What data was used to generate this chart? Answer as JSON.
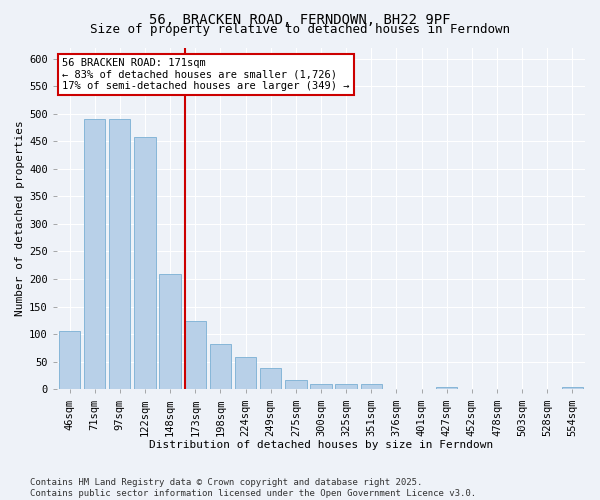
{
  "title": "56, BRACKEN ROAD, FERNDOWN, BH22 9PF",
  "subtitle": "Size of property relative to detached houses in Ferndown",
  "xlabel": "Distribution of detached houses by size in Ferndown",
  "ylabel": "Number of detached properties",
  "categories": [
    "46sqm",
    "71sqm",
    "97sqm",
    "122sqm",
    "148sqm",
    "173sqm",
    "198sqm",
    "224sqm",
    "249sqm",
    "275sqm",
    "300sqm",
    "325sqm",
    "351sqm",
    "376sqm",
    "401sqm",
    "427sqm",
    "452sqm",
    "478sqm",
    "503sqm",
    "528sqm",
    "554sqm"
  ],
  "values": [
    105,
    490,
    490,
    458,
    210,
    123,
    83,
    58,
    38,
    16,
    10,
    10,
    10,
    0,
    0,
    5,
    0,
    0,
    0,
    0,
    5
  ],
  "bar_color": "#b8d0e8",
  "bar_edgecolor": "#7aafd4",
  "vline_index": 5,
  "vline_color": "#cc0000",
  "annotation_text": "56 BRACKEN ROAD: 171sqm\n← 83% of detached houses are smaller (1,726)\n17% of semi-detached houses are larger (349) →",
  "annotation_box_facecolor": "#ffffff",
  "annotation_box_edgecolor": "#cc0000",
  "ylim": [
    0,
    620
  ],
  "yticks": [
    0,
    50,
    100,
    150,
    200,
    250,
    300,
    350,
    400,
    450,
    500,
    550,
    600
  ],
  "background_color": "#eef2f8",
  "grid_color": "#ffffff",
  "footer": "Contains HM Land Registry data © Crown copyright and database right 2025.\nContains public sector information licensed under the Open Government Licence v3.0.",
  "title_fontsize": 10,
  "subtitle_fontsize": 9,
  "axis_label_fontsize": 8,
  "tick_fontsize": 7.5,
  "footer_fontsize": 6.5,
  "annot_fontsize": 7.5
}
